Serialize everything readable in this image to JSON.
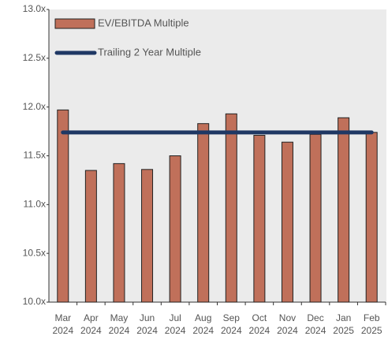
{
  "chart_data": {
    "type": "bar",
    "categories": [
      "Mar 2024",
      "Apr 2024",
      "May 2024",
      "Jun 2024",
      "Jul 2024",
      "Aug 2024",
      "Sep 2024",
      "Oct 2024",
      "Nov 2024",
      "Dec 2024",
      "Jan 2025",
      "Feb 2025"
    ],
    "series": [
      {
        "name": "EV/EBITDA Multiple",
        "color": "#c0705a",
        "type": "bar",
        "values": [
          11.97,
          11.35,
          11.42,
          11.36,
          11.5,
          11.83,
          11.93,
          11.71,
          11.64,
          11.72,
          11.89,
          11.74
        ]
      },
      {
        "name": "Trailing 2 Year Multiple",
        "color": "#1f3864",
        "type": "line",
        "values": [
          11.74,
          11.74,
          11.74,
          11.74,
          11.74,
          11.74,
          11.74,
          11.74,
          11.74,
          11.74,
          11.74,
          11.74
        ]
      }
    ],
    "ylim": [
      10.0,
      13.0
    ],
    "yticks": [
      {
        "value": 10.0,
        "label": "10.0x"
      },
      {
        "value": 10.5,
        "label": "10.5x"
      },
      {
        "value": 11.0,
        "label": "11.0x"
      },
      {
        "value": 11.5,
        "label": "11.5x"
      },
      {
        "value": 12.0,
        "label": "12.0x"
      },
      {
        "value": 12.5,
        "label": "12.5x"
      },
      {
        "value": 13.0,
        "label": "13.0x"
      }
    ],
    "legend": "top-left"
  }
}
